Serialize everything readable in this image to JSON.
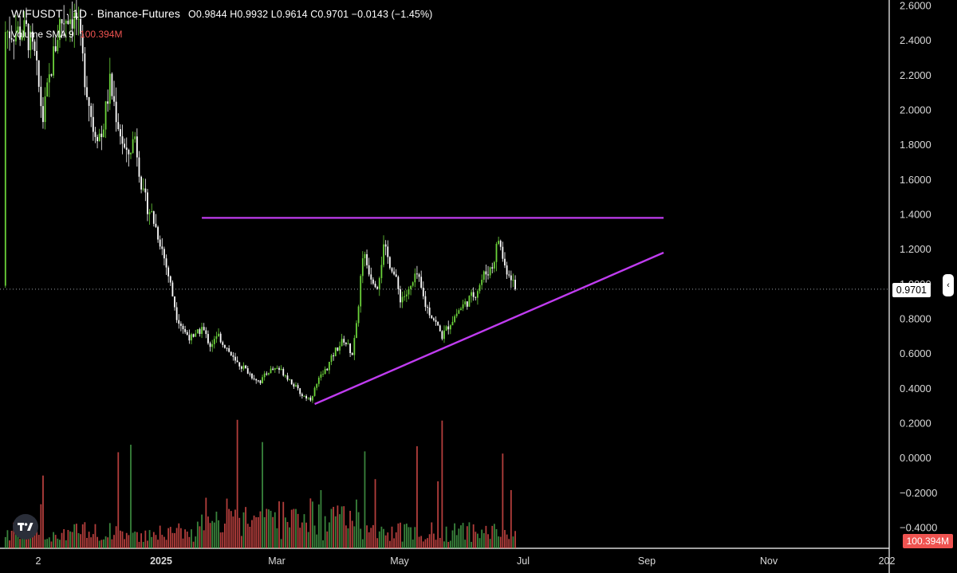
{
  "header": {
    "symbol": "WIFUSDT · 1D · Binance-Futures",
    "ohlc": "O0.9844 H0.9932 L0.9614 C0.9701 −0.0143 (−1.45%)",
    "volume_label": "Volume SMA 9",
    "volume_value": "100.394M"
  },
  "price_tag": "0.9701",
  "volume_tag": "100.394M",
  "collapse_glyph": "‹",
  "logo": "tradingview-logo",
  "colors": {
    "background": "#000000",
    "candle_up": "#6bd23a",
    "candle_down": "#ffffff",
    "volume_up": "#4caf50",
    "volume_down": "#ef5350",
    "trendline": "#c03cf0"
  },
  "chart_data": {
    "type": "candlestick",
    "y_axis_ticks": [
      "2.6000",
      "2.4000",
      "2.2000",
      "2.0000",
      "1.8000",
      "1.6000",
      "1.4000",
      "1.2000",
      "1.0000",
      "0.8000",
      "0.6000",
      "0.4000",
      "0.2000",
      "0.0000",
      "−0.2000",
      "−0.4000"
    ],
    "x_axis_ticks": [
      "2",
      "2025",
      "Mar",
      "May",
      "Jul",
      "Sep",
      "Nov",
      "202"
    ],
    "ylim": [
      -0.45,
      2.62
    ],
    "last_close": 0.9701,
    "price_path": [
      [
        0,
        2.45
      ],
      [
        4,
        2.3
      ],
      [
        8,
        1.95
      ],
      [
        12,
        2.25
      ],
      [
        16,
        2.5
      ],
      [
        20,
        2.55
      ],
      [
        24,
        2.52
      ],
      [
        28,
        2.2
      ],
      [
        32,
        1.9
      ],
      [
        36,
        1.85
      ],
      [
        40,
        2.15
      ],
      [
        44,
        1.92
      ],
      [
        48,
        1.72
      ],
      [
        52,
        1.85
      ],
      [
        56,
        1.5
      ],
      [
        60,
        1.4
      ],
      [
        64,
        1.25
      ],
      [
        68,
        1.05
      ],
      [
        72,
        0.82
      ],
      [
        76,
        0.72
      ],
      [
        80,
        0.68
      ],
      [
        84,
        0.75
      ],
      [
        88,
        0.65
      ],
      [
        92,
        0.7
      ],
      [
        96,
        0.63
      ],
      [
        100,
        0.55
      ],
      [
        104,
        0.52
      ],
      [
        108,
        0.47
      ],
      [
        112,
        0.44
      ],
      [
        116,
        0.5
      ],
      [
        120,
        0.52
      ],
      [
        124,
        0.48
      ],
      [
        128,
        0.42
      ],
      [
        132,
        0.36
      ],
      [
        136,
        0.34
      ],
      [
        140,
        0.45
      ],
      [
        144,
        0.52
      ],
      [
        148,
        0.62
      ],
      [
        152,
        0.68
      ],
      [
        156,
        0.6
      ],
      [
        158,
        0.75
      ],
      [
        161,
        1.18
      ],
      [
        165,
        1.05
      ],
      [
        168,
        1.0
      ],
      [
        171,
        1.2
      ],
      [
        175,
        1.1
      ],
      [
        179,
        0.92
      ],
      [
        183,
        0.95
      ],
      [
        187,
        1.05
      ],
      [
        191,
        0.88
      ],
      [
        195,
        0.8
      ],
      [
        199,
        0.7
      ],
      [
        203,
        0.78
      ],
      [
        207,
        0.85
      ],
      [
        211,
        0.9
      ],
      [
        215,
        0.95
      ],
      [
        219,
        1.05
      ],
      [
        223,
        1.1
      ],
      [
        226,
        1.26
      ],
      [
        229,
        1.1
      ],
      [
        232,
        1.05
      ],
      [
        234,
        0.9701
      ]
    ],
    "annotations": [
      {
        "type": "horizontal_line",
        "price": 1.38,
        "from_day": 84,
        "to_day": 305
      },
      {
        "type": "trendline",
        "from": [
          138,
          0.31
        ],
        "to": [
          305,
          1.18
        ]
      }
    ]
  }
}
